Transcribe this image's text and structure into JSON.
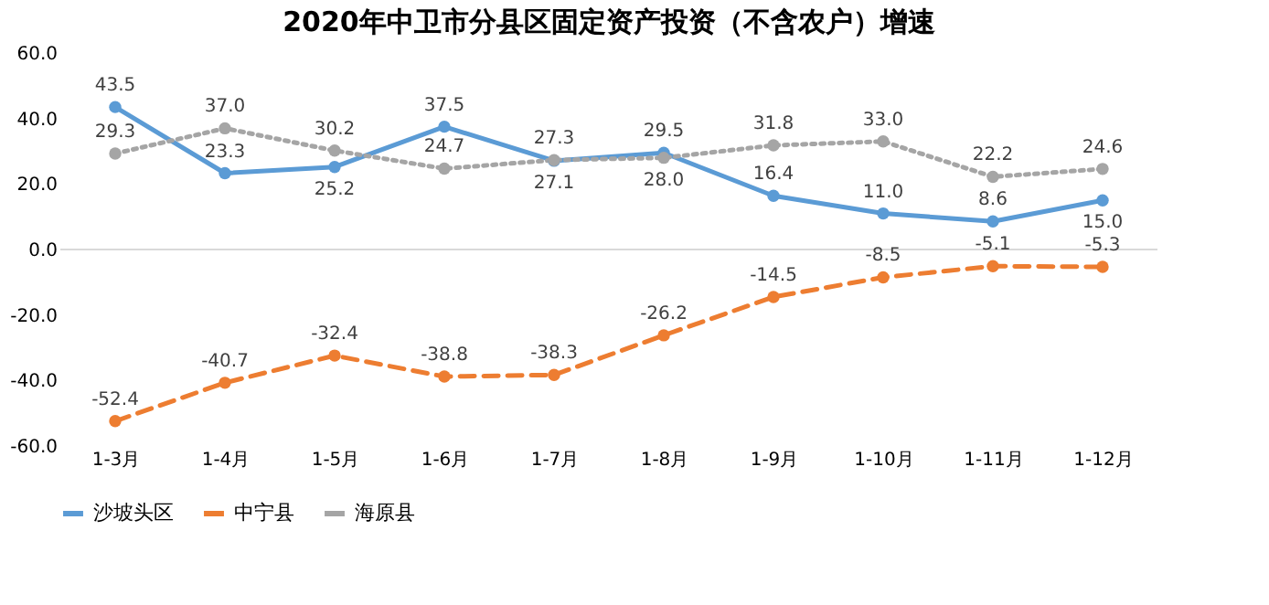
{
  "chart_data": {
    "type": "line",
    "title": "2020年中卫市分县区固定资产投资（不含农户）增速",
    "categories": [
      "1-3月",
      "1-4月",
      "1-5月",
      "1-6月",
      "1-7月",
      "1-8月",
      "1-9月",
      "1-10月",
      "1-11月",
      "1-12月"
    ],
    "series": [
      {
        "name": "沙坡头区",
        "color": "#5b9bd5",
        "line_style": "solid",
        "values": [
          43.5,
          23.3,
          25.2,
          37.5,
          27.1,
          29.5,
          16.4,
          11.0,
          8.6,
          15.0
        ],
        "value_labels": [
          "43.5",
          "23.3",
          "25.2",
          "37.5",
          "27.1",
          "29.5",
          "16.4",
          "11.0",
          "8.6",
          "15.0"
        ]
      },
      {
        "name": "中宁县",
        "color": "#ed7d31",
        "line_style": "dashed",
        "values": [
          -52.4,
          -40.7,
          -32.4,
          -38.8,
          -38.3,
          -26.2,
          -14.5,
          -8.5,
          -5.1,
          -5.3
        ],
        "value_labels": [
          "-52.4",
          "-40.7",
          "-32.4",
          "-38.8",
          "-38.3",
          "-26.2",
          "-14.5",
          "-8.5",
          "-5.1",
          "-5.3"
        ]
      },
      {
        "name": "海原县",
        "color": "#a5a5a5",
        "line_style": "dotted",
        "values": [
          29.3,
          37.0,
          30.2,
          24.7,
          27.3,
          28.0,
          31.8,
          33.0,
          22.2,
          24.6
        ],
        "value_labels": [
          "29.3",
          "37.0",
          "30.2",
          "24.7",
          "27.3",
          "28.0",
          "31.8",
          "33.0",
          "22.2",
          "24.6"
        ]
      }
    ],
    "ylim": [
      -60,
      60
    ],
    "yticks": [
      {
        "value": -60,
        "label": "-60.0"
      },
      {
        "value": -40,
        "label": "-40.0"
      },
      {
        "value": -20,
        "label": "-20.0"
      },
      {
        "value": 0,
        "label": "0.0"
      },
      {
        "value": 20,
        "label": "20.0"
      },
      {
        "value": 40,
        "label": "40.0"
      },
      {
        "value": 60,
        "label": "60.0"
      }
    ],
    "ref_lines": [
      {
        "axis": "y",
        "value": 0,
        "color": "#d9d9d9"
      }
    ],
    "grid": false,
    "legend": "bottom",
    "marker": "circle"
  }
}
